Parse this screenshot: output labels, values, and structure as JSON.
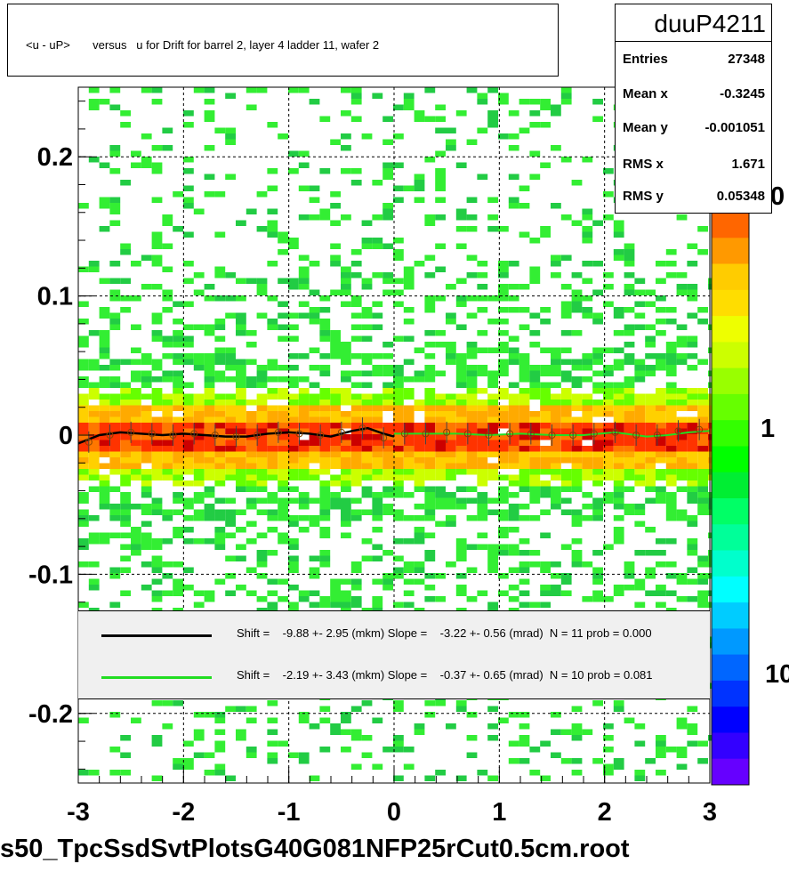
{
  "title": "<u - uP>       versus   u for Drift for barrel 2, layer 4 ladder 11, wafer 2",
  "footer": "s50_TpcSsdSvtPlotsG40G081NFP25rCut0.5cm.root",
  "stats": {
    "name": "duuP4211",
    "rows": [
      {
        "label": "Entries",
        "value": "27348"
      },
      {
        "label": "Mean x",
        "value": "-0.3245"
      },
      {
        "label": "Mean y",
        "value": "-0.001051"
      },
      {
        "label": "RMS x",
        "value": "1.671"
      },
      {
        "label": "RMS y",
        "value": "0.05348"
      }
    ]
  },
  "legend": [
    {
      "color": "#000000",
      "text": "Shift =    -9.88 +- 2.95 (mkm) Slope =    -3.22 +- 0.56 (mrad)  N = 11 prob = 0.000"
    },
    {
      "color": "#22dd22",
      "text": "Shift =    -2.19 +- 3.43 (mkm) Slope =    -0.37 +- 0.65 (mrad)  N = 10 prob = 0.081"
    }
  ],
  "palette_labels": [
    "0",
    "1",
    "10"
  ],
  "chart_data": {
    "type": "heatmap",
    "title": "<u - uP>       versus   u for Drift for barrel 2, layer 4 ladder 11, wafer 2",
    "xlabel": "",
    "ylabel": "",
    "xlim": [
      -3,
      3
    ],
    "ylim": [
      -0.25,
      0.25
    ],
    "x_ticks": [
      "-3",
      "-2",
      "-1",
      "0",
      "1",
      "2",
      "3"
    ],
    "y_ticks": [
      "-0.2",
      "-0.1",
      "0",
      "0.1",
      "0.2"
    ],
    "grid": true,
    "log_z": true,
    "entries": 27348,
    "mean_x": -0.3245,
    "mean_y": -0.001051,
    "rms_x": 1.671,
    "rms_y": 0.05348,
    "series": [
      {
        "name": "profile",
        "x": [
          -2.9,
          -2.7,
          -2.5,
          -2.3,
          -2.1,
          -1.9,
          -1.7,
          -1.5,
          -1.3,
          -1.1,
          -0.9,
          -0.7,
          -0.5,
          -0.3,
          -0.1,
          0.1,
          0.3,
          0.5,
          0.7,
          0.9,
          1.1,
          1.3,
          1.5,
          1.7,
          1.9,
          2.1,
          2.3,
          2.5,
          2.7,
          2.9
        ],
        "y": [
          -0.005,
          0.0,
          0.002,
          0.001,
          0.0,
          0.001,
          0.0,
          -0.001,
          0.0,
          0.002,
          0.001,
          0.0,
          0.002,
          0.005,
          -0.002,
          0.001,
          0.001,
          0.002,
          0.001,
          0.0,
          0.001,
          0.001,
          0.0,
          0.0,
          0.001,
          0.002,
          0.0,
          0.0,
          0.003,
          0.004
        ]
      },
      {
        "name": "black fit",
        "x": [
          -3.0,
          -2.8,
          -2.6,
          -2.4,
          -2.2,
          -2.0,
          -1.8,
          -1.6,
          -1.4,
          -1.2,
          -1.0,
          -0.8,
          -0.6,
          -0.4,
          -0.25,
          -0.1,
          0.0
        ],
        "y": [
          -0.006,
          0.0,
          0.002,
          0.001,
          0.0,
          0.001,
          0.0,
          -0.001,
          -0.001,
          0.001,
          0.002,
          0.001,
          -0.001,
          0.003,
          0.005,
          0.001,
          -0.001
        ]
      },
      {
        "name": "green fit",
        "x": [
          0.0,
          0.3,
          0.6,
          0.9,
          1.2,
          1.5,
          1.8,
          2.1,
          2.4,
          2.6,
          2.8,
          3.0
        ],
        "y": [
          0.001,
          0.001,
          0.001,
          0.0,
          0.001,
          0.0,
          0.0,
          0.002,
          -0.001,
          0.0,
          0.002,
          0.003
        ]
      }
    ]
  }
}
